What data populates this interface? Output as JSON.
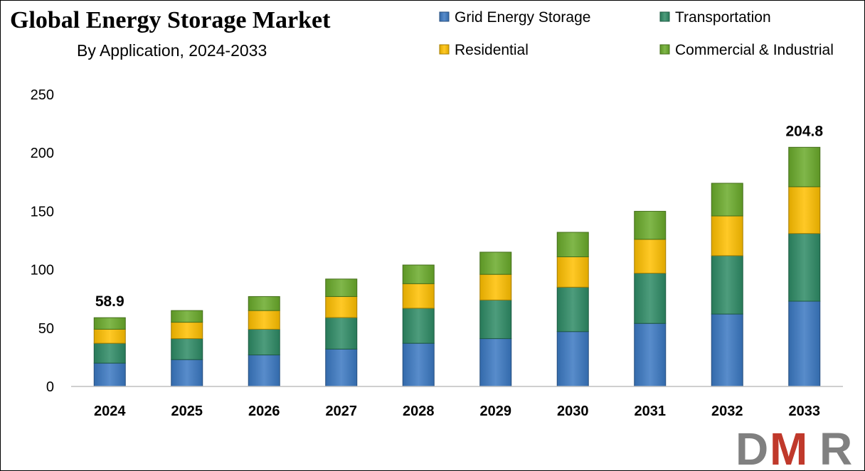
{
  "chart_data": {
    "type": "bar",
    "stacked": true,
    "title": "Global Energy Storage Market",
    "subtitle": "By Application, 2024-2033",
    "categories": [
      "2024",
      "2025",
      "2026",
      "2027",
      "2028",
      "2029",
      "2030",
      "2031",
      "2032",
      "2033"
    ],
    "series": [
      {
        "name": "Grid Energy Storage",
        "color": "#3a78c2",
        "values": [
          20,
          23,
          27,
          32,
          37,
          41,
          47,
          54,
          62,
          73
        ]
      },
      {
        "name": "Transportation",
        "color": "#2e8b65",
        "values": [
          17,
          18,
          22,
          27,
          30,
          33,
          38,
          43,
          50,
          58
        ]
      },
      {
        "name": "Residential",
        "color": "#ffc000",
        "values": [
          12,
          14,
          16,
          18,
          21,
          22,
          26,
          29,
          34,
          40
        ]
      },
      {
        "name": "Commercial & Industrial",
        "color": "#6aaa2a",
        "values": [
          9.9,
          10,
          12,
          15,
          16,
          19,
          21,
          24,
          28,
          33.8
        ]
      }
    ],
    "data_labels": [
      {
        "category": "2024",
        "text": "58.9"
      },
      {
        "category": "2033",
        "text": "204.8"
      }
    ],
    "ylim": [
      0,
      250
    ],
    "yticks": [
      0,
      50,
      100,
      150,
      200,
      250
    ],
    "grid": false,
    "legend": "top-right",
    "xlabel": "",
    "ylabel": ""
  },
  "logo": {
    "text": "DMR",
    "colors": [
      "#808080",
      "#c0392b",
      "#808080"
    ]
  }
}
